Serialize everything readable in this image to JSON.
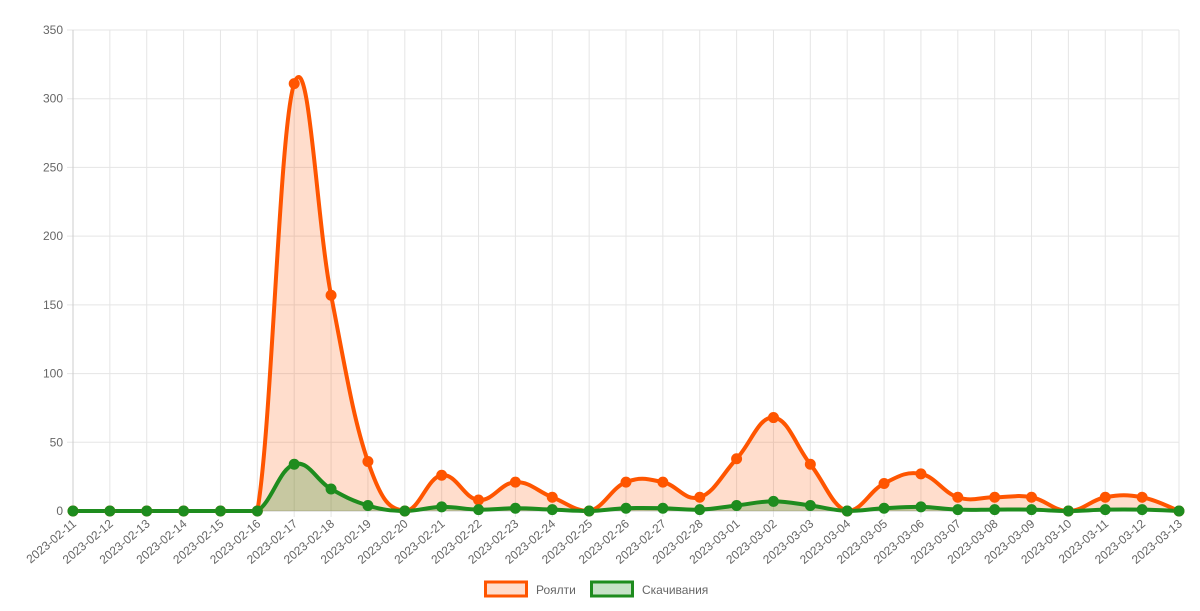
{
  "chart_data": {
    "type": "line",
    "title": "",
    "xlabel": "",
    "ylabel": "",
    "ylim": [
      0,
      350
    ],
    "y_ticks": [
      0,
      50,
      100,
      150,
      200,
      250,
      300,
      350
    ],
    "grid": true,
    "legend_position": "bottom",
    "x": [
      "2023-02-11",
      "2023-02-12",
      "2023-02-13",
      "2023-02-14",
      "2023-02-15",
      "2023-02-16",
      "2023-02-17",
      "2023-02-18",
      "2023-02-19",
      "2023-02-20",
      "2023-02-21",
      "2023-02-22",
      "2023-02-23",
      "2023-02-24",
      "2023-02-25",
      "2023-02-26",
      "2023-02-27",
      "2023-02-28",
      "2023-03-01",
      "2023-03-02",
      "2023-03-03",
      "2023-03-04",
      "2023-03-05",
      "2023-03-06",
      "2023-03-07",
      "2023-03-08",
      "2023-03-09",
      "2023-03-10",
      "2023-03-11",
      "2023-03-12",
      "2023-03-13"
    ],
    "series": [
      {
        "name": "Роялти",
        "color": "#ff5500",
        "fill": "rgba(255,85,0,0.2)",
        "values": [
          0,
          0,
          0,
          0,
          0,
          0,
          311,
          157,
          36,
          0,
          26,
          8,
          21,
          10,
          0,
          21,
          21,
          10,
          38,
          68,
          34,
          0,
          20,
          27,
          10,
          10,
          10,
          0,
          10,
          10,
          0
        ]
      },
      {
        "name": "Скачивания",
        "color": "#1e8c1e",
        "fill": "rgba(30,140,30,0.25)",
        "values": [
          0,
          0,
          0,
          0,
          0,
          0,
          34,
          16,
          4,
          0,
          3,
          1,
          2,
          1,
          0,
          2,
          2,
          1,
          4,
          7,
          4,
          0,
          2,
          3,
          1,
          1,
          1,
          0,
          1,
          1,
          0
        ]
      }
    ]
  }
}
